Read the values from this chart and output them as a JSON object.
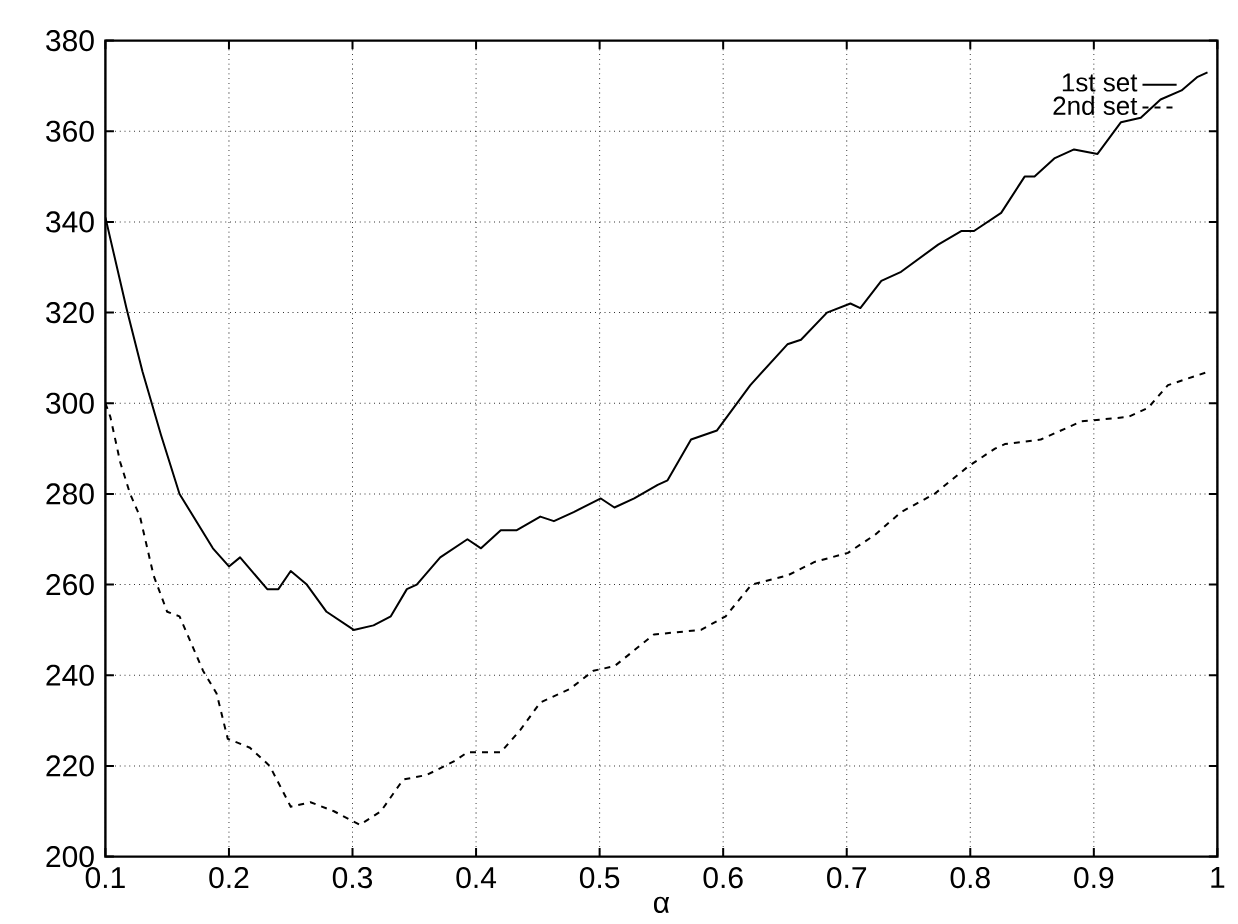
{
  "chart_data": {
    "type": "line",
    "xlabel": "α",
    "xlim": [
      0.1,
      1
    ],
    "ylim": [
      200,
      380
    ],
    "xticks": [
      0.1,
      0.2,
      0.3,
      0.4,
      0.5,
      0.6,
      0.7,
      0.8,
      0.9,
      {
        "value": 1,
        "label": "1"
      }
    ],
    "yticks": [
      200,
      220,
      240,
      260,
      280,
      300,
      320,
      340,
      360,
      380
    ],
    "grid": true,
    "legend": "top right",
    "marker": "none",
    "series": [
      {
        "name": "1st set",
        "color": "#000000",
        "line_style": "solid",
        "x": [
          0.1,
          0.117,
          0.13,
          0.145,
          0.16,
          0.187,
          0.2,
          0.209,
          0.231,
          0.24,
          0.25,
          0.263,
          0.279,
          0.301,
          0.317,
          0.331,
          0.344,
          0.352,
          0.371,
          0.393,
          0.404,
          0.42,
          0.433,
          0.452,
          0.463,
          0.479,
          0.501,
          0.512,
          0.528,
          0.547,
          0.555,
          0.574,
          0.595,
          0.622,
          0.652,
          0.663,
          0.684,
          0.703,
          0.711,
          0.728,
          0.744,
          0.774,
          0.793,
          0.803,
          0.825,
          0.844,
          0.852,
          0.868,
          0.884,
          0.903,
          0.922,
          0.938,
          0.954,
          0.971,
          0.984,
          0.992
        ],
        "values": [
          341,
          321,
          307,
          293,
          280,
          268,
          264,
          266,
          259,
          259,
          263,
          260,
          254,
          250,
          251,
          253,
          259,
          260,
          266,
          270,
          268,
          272,
          272,
          275,
          274,
          276,
          279,
          277,
          279,
          282,
          283,
          292,
          294,
          304,
          313,
          314,
          320,
          322,
          321,
          327,
          329,
          335,
          338,
          338,
          342,
          350,
          350,
          354,
          356,
          355,
          362,
          363,
          367,
          369,
          372,
          373
        ]
      },
      {
        "name": "2nd set",
        "color": "#000000",
        "line_style": "dashed",
        "x": [
          0.1,
          0.104,
          0.112,
          0.12,
          0.128,
          0.139,
          0.15,
          0.16,
          0.179,
          0.19,
          0.199,
          0.217,
          0.233,
          0.25,
          0.266,
          0.285,
          0.306,
          0.323,
          0.341,
          0.36,
          0.382,
          0.393,
          0.42,
          0.436,
          0.452,
          0.476,
          0.495,
          0.512,
          0.544,
          0.582,
          0.602,
          0.623,
          0.652,
          0.674,
          0.701,
          0.723,
          0.744,
          0.771,
          0.798,
          0.82,
          0.828,
          0.857,
          0.89,
          0.928,
          0.944,
          0.96,
          0.993
        ],
        "values": [
          300,
          297,
          287,
          280,
          275,
          262,
          254,
          253,
          241,
          236,
          226,
          224,
          220,
          211,
          212,
          210,
          207,
          210,
          217,
          218,
          221,
          223,
          223,
          228,
          234,
          237,
          241,
          242,
          249,
          250,
          253,
          260,
          262,
          265,
          267,
          271,
          276,
          280,
          286,
          290,
          291,
          292,
          296,
          297,
          299,
          304,
          307
        ]
      }
    ]
  }
}
